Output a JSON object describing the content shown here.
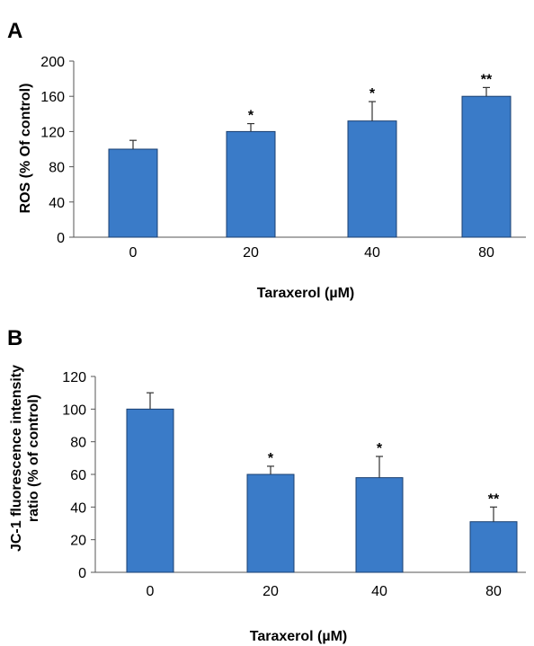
{
  "colors": {
    "bar_fill": "#3a7bc8",
    "bar_stroke": "#1a3f70",
    "axis": "#555555"
  },
  "chart_data": [
    {
      "panel_label": "A",
      "type": "bar",
      "categories": [
        "0",
        "20",
        "40",
        "80"
      ],
      "values": [
        100,
        120,
        132,
        160
      ],
      "error": [
        10,
        9,
        22,
        10
      ],
      "significance": [
        "",
        "*",
        "*",
        "**"
      ],
      "xlabel": "Taraxerol (µM)",
      "ylabel": "ROS (% Of control)",
      "ylim": [
        0,
        200
      ],
      "yticks": [
        0,
        40,
        80,
        120,
        160,
        200
      ],
      "grid": false,
      "legend": "none"
    },
    {
      "panel_label": "B",
      "type": "bar",
      "categories": [
        "0",
        "20",
        "40",
        "80"
      ],
      "values": [
        100,
        60,
        58,
        31
      ],
      "error": [
        10,
        5,
        13,
        9
      ],
      "significance": [
        "",
        "*",
        "*",
        "**"
      ],
      "xlabel": "Taraxerol (µM)",
      "ylabel_lines": [
        "JC-1 fluorescence intensity",
        "ratio (% of control)"
      ],
      "ylim": [
        0,
        120
      ],
      "yticks": [
        0,
        20,
        40,
        60,
        80,
        100,
        120
      ],
      "grid": false,
      "legend": "none"
    }
  ]
}
